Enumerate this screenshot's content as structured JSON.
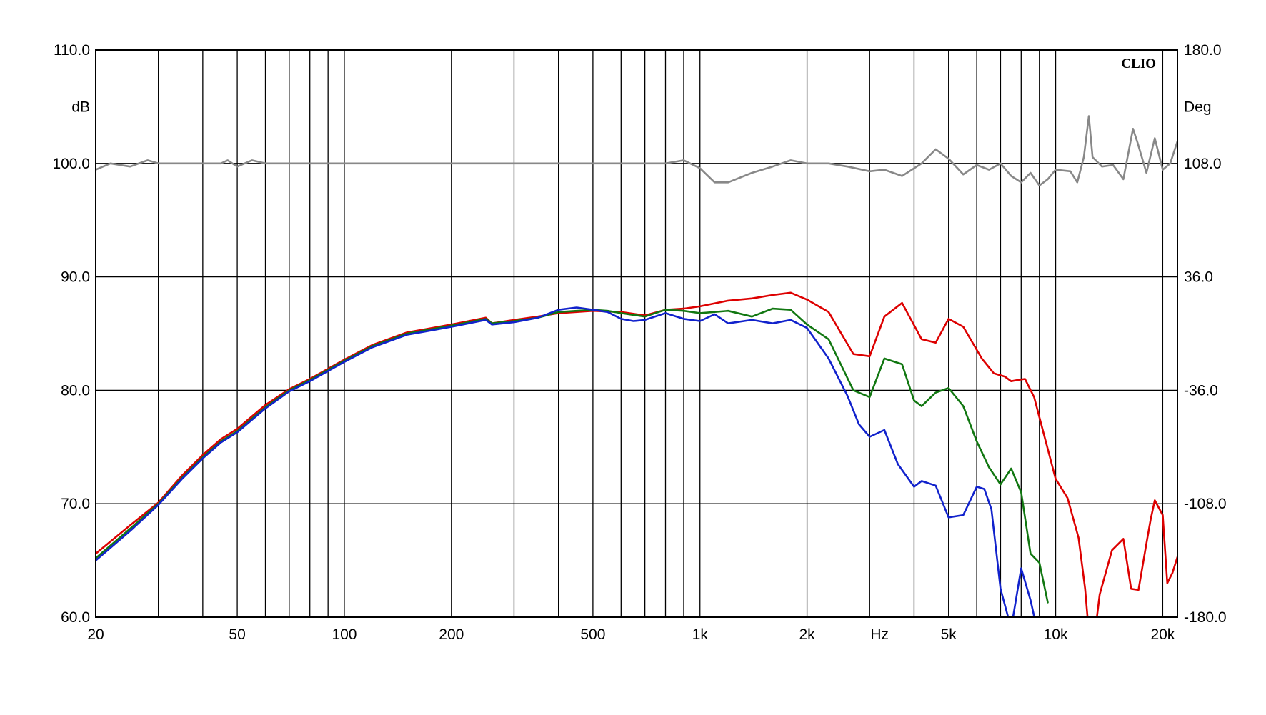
{
  "chart_data": {
    "type": "line",
    "brand": "CLIO",
    "x_scale": "log",
    "xlim": [
      20,
      22000
    ],
    "x_ticks": [
      20,
      50,
      100,
      200,
      500,
      1000,
      2000,
      5000,
      10000,
      20000
    ],
    "x_tick_labels": [
      "20",
      "50",
      "100",
      "200",
      "500",
      "1k",
      "2k",
      "Hz",
      "5k",
      "10k",
      "20k"
    ],
    "x_tick_label_values": [
      20,
      50,
      100,
      200,
      500,
      1000,
      2000,
      3200,
      5000,
      10000,
      20000
    ],
    "x_gridlines": [
      30,
      40,
      50,
      60,
      70,
      80,
      90,
      100,
      200,
      300,
      400,
      500,
      600,
      700,
      800,
      900,
      1000,
      2000,
      3000,
      4000,
      5000,
      6000,
      7000,
      8000,
      9000,
      10000,
      20000
    ],
    "ylim": [
      60,
      110
    ],
    "y_ticks": [
      60,
      70,
      80,
      90,
      100,
      110
    ],
    "y_tick_labels": [
      "60.0",
      "70.0",
      "80.0",
      "90.0",
      "100.0",
      "110.0"
    ],
    "ylabel": "dB",
    "y2lim": [
      -180,
      180
    ],
    "y2_ticks": [
      -180,
      -108,
      -36,
      36,
      108,
      180
    ],
    "y2_tick_labels": [
      "-180.0",
      "-108.0",
      "-36.0",
      "36.0",
      "108.0",
      "180.0"
    ],
    "y2label": "Deg",
    "grid": true,
    "series": [
      {
        "color": "#dd0000",
        "axis": "left",
        "x": [
          20,
          25,
          30,
          35,
          40,
          45,
          50,
          55,
          60,
          70,
          80,
          90,
          100,
          120,
          150,
          170,
          200,
          250,
          260,
          300,
          350,
          400,
          500,
          600,
          700,
          800,
          900,
          1000,
          1200,
          1400,
          1600,
          1800,
          2000,
          2300,
          2700,
          3000,
          3300,
          3700,
          4200,
          4600,
          5000,
          5500,
          6200,
          6700,
          7200,
          7500,
          7800,
          8200,
          8700,
          9200,
          10000,
          10800,
          11600,
          12100,
          12600,
          13300,
          14400,
          15500,
          16300,
          17100,
          18000,
          18500,
          19000,
          20000,
          20600,
          21300,
          22000
        ],
        "y": [
          65.6,
          68.1,
          70.1,
          72.5,
          74.3,
          75.7,
          76.6,
          77.7,
          78.7,
          80.1,
          81.0,
          81.9,
          82.7,
          84.0,
          85.1,
          85.4,
          85.8,
          86.4,
          85.9,
          86.2,
          86.5,
          86.8,
          87.0,
          86.9,
          86.6,
          87.1,
          87.2,
          87.4,
          87.9,
          88.1,
          88.4,
          88.6,
          88.0,
          86.9,
          83.2,
          83.0,
          86.5,
          87.7,
          84.5,
          84.2,
          86.3,
          85.6,
          82.8,
          81.5,
          81.2,
          80.8,
          80.9,
          81.0,
          79.4,
          76.5,
          72.2,
          70.5,
          67.0,
          62.5,
          56.0,
          62.0,
          65.9,
          66.9,
          62.5,
          62.4,
          66.5,
          68.6,
          70.3,
          69.0,
          63.0,
          63.9,
          65.3
        ]
      },
      {
        "color": "#117711",
        "axis": "left",
        "x": [
          20,
          25,
          30,
          35,
          40,
          45,
          50,
          55,
          60,
          70,
          80,
          90,
          100,
          120,
          150,
          170,
          200,
          250,
          260,
          300,
          350,
          400,
          450,
          500,
          550,
          600,
          700,
          800,
          900,
          1000,
          1200,
          1400,
          1600,
          1800,
          2000,
          2300,
          2700,
          3000,
          3300,
          3700,
          4000,
          4200,
          4600,
          5000,
          5500,
          6000,
          6500,
          7000,
          7500,
          8000,
          8500,
          9000,
          9500
        ],
        "y": [
          65.2,
          67.8,
          70.0,
          72.3,
          74.1,
          75.5,
          76.4,
          77.5,
          78.5,
          80.0,
          80.9,
          81.8,
          82.6,
          83.9,
          85.0,
          85.3,
          85.7,
          86.3,
          85.9,
          86.1,
          86.4,
          86.9,
          87.0,
          87.1,
          87.0,
          86.8,
          86.5,
          87.1,
          87.0,
          86.8,
          87.0,
          86.5,
          87.2,
          87.1,
          85.8,
          84.5,
          80.0,
          79.4,
          82.8,
          82.3,
          79.1,
          78.6,
          79.8,
          80.2,
          78.6,
          75.5,
          73.2,
          71.7,
          73.1,
          71.0,
          65.6,
          64.8,
          61.3
        ]
      },
      {
        "color": "#1122cc",
        "axis": "left",
        "x": [
          20,
          25,
          30,
          35,
          40,
          45,
          50,
          55,
          60,
          70,
          80,
          90,
          100,
          120,
          150,
          170,
          200,
          250,
          260,
          300,
          350,
          400,
          450,
          500,
          550,
          600,
          650,
          700,
          800,
          900,
          1000,
          1100,
          1200,
          1400,
          1600,
          1800,
          2000,
          2300,
          2600,
          2800,
          3000,
          3300,
          3600,
          4000,
          4200,
          4600,
          5000,
          5500,
          6000,
          6300,
          6600,
          7000,
          7500,
          8000,
          8500,
          9000
        ],
        "y": [
          65.0,
          67.6,
          69.9,
          72.2,
          74.0,
          75.4,
          76.3,
          77.4,
          78.4,
          79.9,
          80.8,
          81.7,
          82.5,
          83.8,
          84.9,
          85.2,
          85.6,
          86.2,
          85.8,
          86.0,
          86.4,
          87.1,
          87.3,
          87.1,
          86.9,
          86.3,
          86.1,
          86.2,
          86.8,
          86.3,
          86.1,
          86.7,
          85.9,
          86.2,
          85.9,
          86.2,
          85.5,
          82.8,
          79.5,
          77.0,
          75.9,
          76.5,
          73.5,
          71.5,
          72.0,
          71.6,
          68.8,
          69.0,
          71.5,
          71.3,
          69.5,
          62.5,
          59.0,
          64.3,
          61.5,
          58.0
        ]
      },
      {
        "color": "#888888",
        "axis": "right",
        "x": [
          20,
          22,
          25,
          28,
          30,
          35,
          40,
          45,
          47,
          50,
          55,
          60,
          70,
          80,
          100,
          150,
          200,
          300,
          500,
          700,
          800,
          900,
          1000,
          1100,
          1200,
          1400,
          1600,
          1800,
          2000,
          2300,
          2600,
          3000,
          3300,
          3700,
          4200,
          4600,
          5000,
          5500,
          6000,
          6500,
          7000,
          7500,
          8000,
          8500,
          9000,
          9500,
          10000,
          11000,
          11500,
          12000,
          12400,
          12700,
          13500,
          14500,
          15500,
          16500,
          17000,
          18000,
          19000,
          20000,
          21000,
          22000
        ],
        "y": [
          104,
          108,
          106,
          110,
          108,
          108,
          108,
          108,
          110,
          106,
          110,
          108,
          108,
          108,
          108,
          108,
          108,
          108,
          108,
          108,
          108,
          110,
          105,
          96,
          96,
          102,
          106,
          110,
          108,
          108,
          106,
          103,
          104,
          100,
          108,
          117,
          111,
          101,
          107,
          104,
          108,
          100,
          96,
          102,
          94,
          98,
          104,
          103,
          96,
          112,
          138,
          112,
          106,
          107,
          98,
          130,
          121,
          102,
          124,
          104,
          108,
          122
        ]
      }
    ]
  }
}
